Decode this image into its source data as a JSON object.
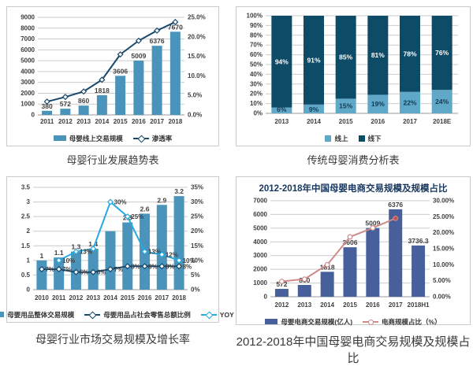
{
  "chart_data": [
    {
      "type": "combo-bar-line",
      "caption": "母婴行业发展趋势表",
      "categories": [
        "2011",
        "2012",
        "2013",
        "2014",
        "2015",
        "2016",
        "2017",
        "2018"
      ],
      "bar_series": {
        "name": "母婴线上交易规模",
        "color": "#4a93ba",
        "values": [
          380,
          572,
          860,
          1818,
          3606,
          5009,
          6376,
          7670
        ],
        "labels": [
          "380",
          "572",
          "860",
          "1818",
          "3606",
          "5009",
          "6376",
          "7670"
        ]
      },
      "line_series": [
        {
          "name": "渗透率",
          "color": "#17496b",
          "marker": "diamond",
          "values": [
            3.4,
            4.6,
            6.0,
            9.0,
            15.5,
            19.0,
            21.6,
            23.8
          ],
          "labels": [
            "",
            "",
            "",
            "",
            "",
            "",
            "",
            ""
          ]
        }
      ],
      "left_axis": {
        "min": 0,
        "max": 9000,
        "step": 1000,
        "fmt": "int"
      },
      "right_axis": {
        "min": 0,
        "max": 25,
        "step": 5,
        "fmt": "pct1"
      },
      "legend": [
        {
          "swatch": "bar",
          "color": "#4a93ba",
          "label": "母婴线上交易规模"
        },
        {
          "swatch": "line-diamond",
          "color": "#17496b",
          "label": "渗透率"
        }
      ]
    },
    {
      "type": "stacked-bar",
      "caption": "传统母婴消费分析表",
      "categories": [
        "2013",
        "2014",
        "2015",
        "2016",
        "2017",
        "2018E"
      ],
      "series": [
        {
          "name": "线上",
          "color": "#5fa8c8",
          "label_color": "#123a52",
          "values": [
            6,
            9,
            15,
            19,
            22,
            24
          ],
          "labels": [
            "6%",
            "9%",
            "15%",
            "19%",
            "22%",
            "24%"
          ]
        },
        {
          "name": "线下",
          "color": "#0d4b66",
          "label_color": "#ffffff",
          "values": [
            94,
            91,
            85,
            81,
            78,
            76
          ],
          "labels": [
            "94%",
            "91%",
            "85%",
            "81%",
            "78%",
            "76%"
          ]
        }
      ],
      "left_axis": {
        "min": 0,
        "max": 100,
        "step": 10,
        "fmt": "pct0"
      },
      "legend": [
        {
          "swatch": "square",
          "color": "#5fa8c8",
          "label": "线上"
        },
        {
          "swatch": "square",
          "color": "#0d4b66",
          "label": "线下"
        }
      ]
    },
    {
      "type": "combo-bar-line",
      "caption": "母婴行业市场交易规模及增长率",
      "categories": [
        "2010",
        "2011",
        "2012",
        "2013",
        "2014",
        "2015",
        "2016",
        "2017",
        "2018"
      ],
      "bar_series": {
        "name": "母婴用品整体交易规模",
        "color": "#4a93ba",
        "values": [
          1,
          1.1,
          1.3,
          1.4,
          2,
          2.3,
          2.6,
          2.9,
          3.2
        ],
        "labels": [
          "1",
          "1.1",
          "1.3",
          "1.4",
          "",
          "2.3",
          "2.6",
          "2.9",
          "3.2"
        ]
      },
      "line_series": [
        {
          "name": "母婴用品占社会零售总额比例",
          "color": "#17496b",
          "marker": "diamond",
          "values": [
            7,
            7,
            6,
            6,
            7,
            8,
            8,
            8,
            8
          ],
          "labels": [
            "7%",
            "7%",
            "6%",
            "6%",
            "7%",
            "8%",
            "8%",
            "8%",
            "8%"
          ]
        },
        {
          "name": "YOY",
          "color": "#29a8df",
          "marker": "diamond",
          "values": [
            null,
            10,
            13,
            14,
            30,
            25,
            13,
            12,
            10
          ],
          "labels": [
            "",
            "10%",
            "13%",
            "",
            "30%",
            "25%",
            "13%",
            "12%",
            "10%"
          ]
        }
      ],
      "left_axis": {
        "min": 0,
        "max": 3.5,
        "step": 0.5,
        "fmt": "num"
      },
      "right_axis": {
        "min": 0,
        "max": 35,
        "step": 5,
        "fmt": "pct0"
      },
      "legend": [
        {
          "swatch": "bar",
          "color": "#4a93ba",
          "label": "母婴用品整体交易规模"
        },
        {
          "swatch": "line-diamond",
          "color": "#17496b",
          "label": "母婴用品占社会零售总额比例"
        },
        {
          "swatch": "line-diamond",
          "color": "#29a8df",
          "label": "YOY"
        }
      ]
    },
    {
      "type": "combo-bar-line",
      "title": "2012-2018年中国母婴电商交易规模及规模占比",
      "caption": "2012-2018年中国母婴电商交易规模及规模占比",
      "categories": [
        "2012",
        "2013",
        "2014",
        "2015",
        "2016",
        "2017",
        "2018H1"
      ],
      "bar_series": {
        "name": "母婴电商交易规模(亿人)",
        "color": "#47609c",
        "values": [
          572,
          860,
          1818,
          3606,
          5009,
          6376,
          3736.3
        ],
        "labels": [
          "572",
          "860",
          "1818",
          "3606",
          "5009",
          "6376",
          "3736.3"
        ]
      },
      "line_series": [
        {
          "name": "电商规模占比（%）",
          "color": "#cf8a8a",
          "marker": "circle",
          "last_filled": true,
          "last_fill_color": "#c0504d",
          "values": [
            4.8,
            5.5,
            10,
            18.7,
            21.5,
            24.5,
            null
          ],
          "labels": [
            "",
            "",
            "",
            "",
            "",
            "",
            ""
          ]
        }
      ],
      "left_axis": {
        "min": 0,
        "max": 7000,
        "step": 1000,
        "fmt": "int"
      },
      "right_axis": {
        "min": 0,
        "max": 30,
        "step": 5,
        "fmt": "pct2"
      },
      "legend": [
        {
          "swatch": "bar",
          "color": "#47609c",
          "label": "母婴电商交易规模(亿人)"
        },
        {
          "swatch": "line-circle",
          "color": "#cf8a8a",
          "label": "电商规模占比（%）"
        }
      ]
    }
  ]
}
